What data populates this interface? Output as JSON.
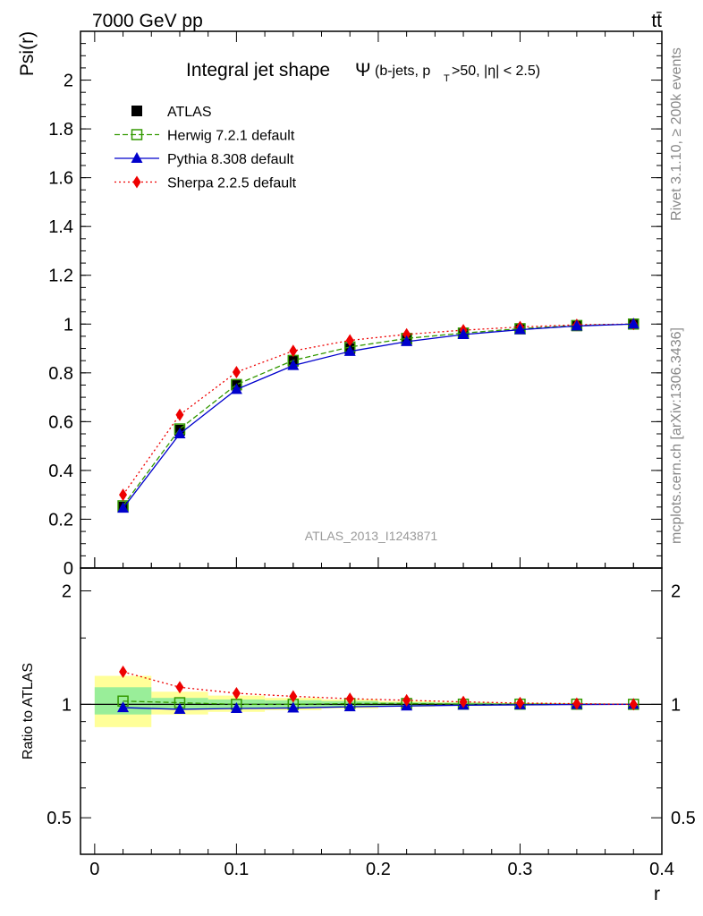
{
  "header": {
    "left_label": "7000 GeV pp",
    "right_label": "tt̄",
    "side_label_top": "Rivet 3.1.10, ≥ 200k events",
    "side_label_bottom": "mcplots.cern.ch [arXiv:1306.3436]",
    "watermark": "ATLAS_2013_I1243871"
  },
  "chart_data": [
    {
      "type": "line",
      "title": "Integral jet shape",
      "title_symbol": "Ψ",
      "title_suffix_pre": "(b-jets, p",
      "title_suffix_sub": "T",
      "title_suffix_post": ">50, |η| < 2.5)",
      "ylabel": "Psi(r)",
      "xlim": [
        -0.01,
        0.4
      ],
      "ylim": [
        0,
        2.2
      ],
      "yticks": [
        0,
        0.2,
        0.4,
        0.6,
        0.8,
        1,
        1.2,
        1.4,
        1.6,
        1.8,
        2
      ],
      "ytick_labels": [
        "0",
        "0.2",
        "0.4",
        "0.6",
        "0.8",
        "1",
        "1.2",
        "1.4",
        "1.6",
        "1.8",
        "2"
      ],
      "legend_position": "top-left",
      "x": [
        0.02,
        0.06,
        0.1,
        0.14,
        0.18,
        0.22,
        0.26,
        0.3,
        0.34,
        0.38
      ],
      "series": [
        {
          "name": "ATLAS",
          "color": "#000000",
          "marker": "filled-square",
          "style": "none",
          "values": [
            0.25,
            0.565,
            0.75,
            0.848,
            0.9,
            0.937,
            0.962,
            0.98,
            0.993,
            1.0
          ]
        },
        {
          "name": "Herwig 7.2.1 default",
          "color": "#339900",
          "marker": "open-square",
          "style": "dashed",
          "values": [
            0.255,
            0.57,
            0.752,
            0.851,
            0.906,
            0.941,
            0.963,
            0.981,
            0.994,
            1.0
          ]
        },
        {
          "name": "Pythia 8.308 default",
          "color": "#0000cc",
          "marker": "triangle",
          "style": "solid",
          "values": [
            0.245,
            0.55,
            0.732,
            0.83,
            0.888,
            0.928,
            0.957,
            0.977,
            0.992,
            1.0
          ]
        },
        {
          "name": "Sherpa 2.2.5 default",
          "color": "#ee0000",
          "marker": "diamond",
          "style": "dotted",
          "values": [
            0.3,
            0.628,
            0.803,
            0.89,
            0.933,
            0.958,
            0.975,
            0.988,
            0.997,
            1.0
          ]
        }
      ]
    },
    {
      "type": "line",
      "ylabel": "Ratio to ATLAS",
      "xlabel": "r",
      "xlim": [
        -0.01,
        0.4
      ],
      "xticks": [
        0,
        0.1,
        0.2,
        0.3,
        0.4
      ],
      "xtick_labels": [
        "0",
        "0.1",
        "0.2",
        "0.3",
        "0.4"
      ],
      "ylim": [
        0.4,
        2.3
      ],
      "log_scale_y": true,
      "yticks": [
        0.5,
        1,
        2
      ],
      "ytick_labels": [
        "0.5",
        "1",
        "2"
      ],
      "x": [
        0.02,
        0.06,
        0.1,
        0.14,
        0.18,
        0.22,
        0.26,
        0.3,
        0.34,
        0.38
      ],
      "bin_edges": [
        0,
        0.04,
        0.08,
        0.12,
        0.16,
        0.2,
        0.24,
        0.28,
        0.32,
        0.36,
        0.4
      ],
      "uncertainty_bands": {
        "stat_color": "#99ee99",
        "total_color": "#ffff99",
        "stat": [
          [
            0.94,
            1.11
          ],
          [
            0.97,
            1.04
          ],
          [
            0.975,
            1.03
          ],
          [
            0.98,
            1.025
          ],
          [
            0.985,
            1.02
          ],
          [
            0.99,
            1.012
          ],
          [
            0.992,
            1.01
          ],
          [
            0.995,
            1.006
          ],
          [
            0.997,
            1.004
          ],
          [
            0.998,
            1.002
          ]
        ],
        "total": [
          [
            0.87,
            1.19
          ],
          [
            0.94,
            1.08
          ],
          [
            0.955,
            1.055
          ],
          [
            0.965,
            1.04
          ],
          [
            0.975,
            1.03
          ],
          [
            0.985,
            1.02
          ],
          [
            0.99,
            1.014
          ],
          [
            0.993,
            1.009
          ],
          [
            0.996,
            1.005
          ],
          [
            0.998,
            1.002
          ]
        ]
      },
      "series": [
        {
          "name": "Herwig 7.2.1 default",
          "color": "#339900",
          "marker": "open-square",
          "style": "dashed",
          "values": [
            1.02,
            1.01,
            1.0,
            1.0,
            1.005,
            1.005,
            1.001,
            1.001,
            1.001,
            1.0
          ]
        },
        {
          "name": "Pythia 8.308 default",
          "color": "#0000cc",
          "marker": "triangle",
          "style": "solid",
          "values": [
            0.98,
            0.97,
            0.975,
            0.978,
            0.985,
            0.99,
            0.995,
            0.997,
            0.999,
            1.0
          ]
        },
        {
          "name": "Sherpa 2.2.5 default",
          "color": "#ee0000",
          "marker": "diamond",
          "style": "dotted",
          "values": [
            1.22,
            1.11,
            1.07,
            1.05,
            1.035,
            1.025,
            1.015,
            1.008,
            1.004,
            1.0
          ]
        }
      ]
    }
  ]
}
